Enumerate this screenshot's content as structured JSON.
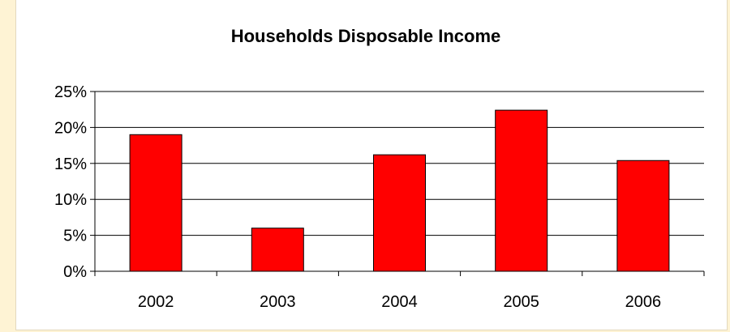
{
  "chart_data": {
    "type": "bar",
    "title": "Households Disposable Income",
    "categories": [
      "2002",
      "2003",
      "2004",
      "2005",
      "2006"
    ],
    "values": [
      19.0,
      6.0,
      16.2,
      22.4,
      15.4
    ],
    "y_ticks": [
      "0%",
      "5%",
      "10%",
      "15%",
      "20%",
      "25%"
    ],
    "ylim": [
      0,
      25
    ],
    "xlabel": "",
    "ylabel": "",
    "grid": true,
    "legend": "none",
    "bar_color": "#FF0000"
  }
}
